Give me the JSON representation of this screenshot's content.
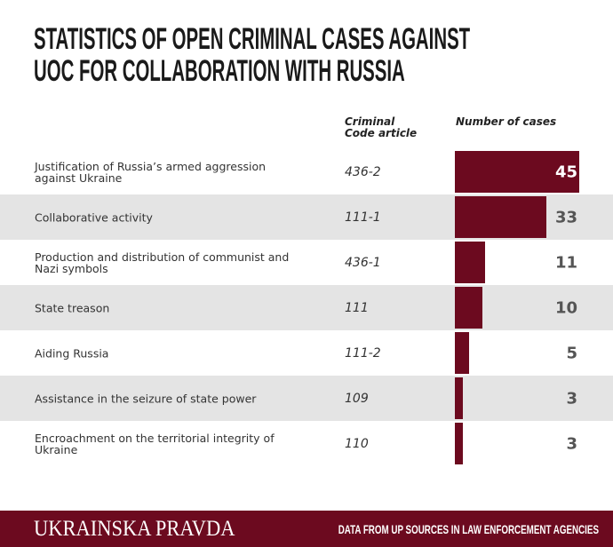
{
  "chart_data": {
    "type": "bar",
    "title": "STATISTICS OF OPEN CRIMINAL CASES AGAINST UOC FOR COLLABORATION WITH RUSSIA",
    "columns": [
      "Criminal Code article",
      "Number of cases"
    ],
    "categories": [
      "Justification of Russia’s armed aggression against Ukraine",
      "Collaborative activity",
      "Production and distribution of communist and Nazi symbols",
      "State treason",
      "Aiding Russia",
      "Assistance in the seizure of state power",
      "Encroachment on the territorial integrity of Ukraine"
    ],
    "articles": [
      "436-2",
      "111-1",
      "436-1",
      "111",
      "111-2",
      "109",
      "110"
    ],
    "values": [
      45,
      33,
      11,
      10,
      5,
      3,
      3
    ],
    "color": "#6c0a1f"
  },
  "footer": {
    "brand": "UKRAINSKA PRAVDA",
    "source": "DATA FROM UP SOURCES IN LAW ENFORCEMENT AGENCIES"
  }
}
